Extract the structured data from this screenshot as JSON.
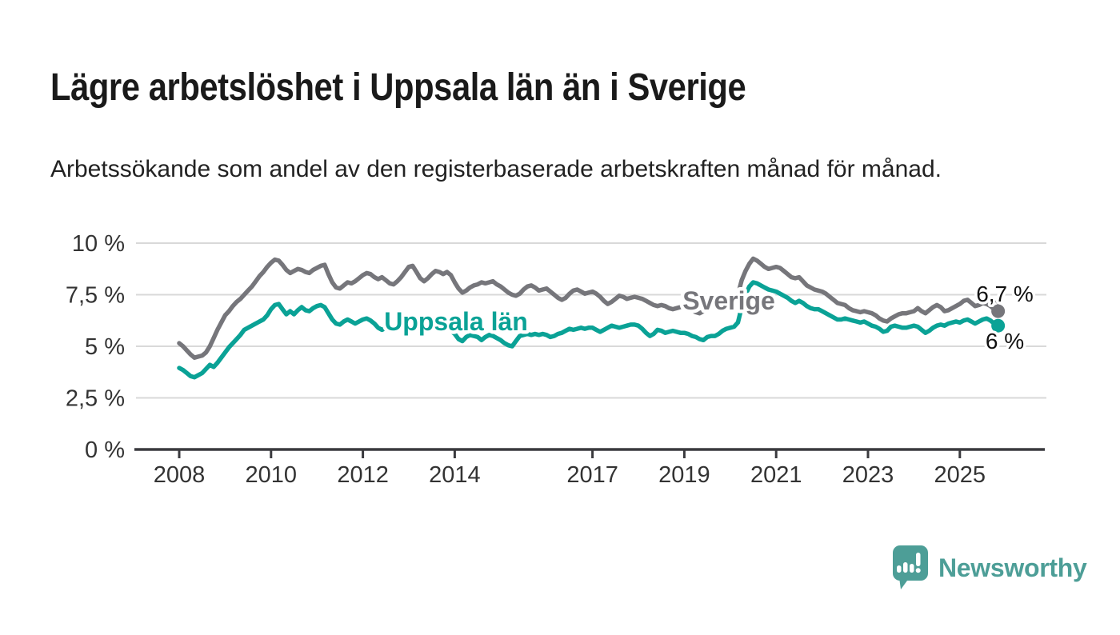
{
  "header": {
    "title": "Lägre arbetslöshet i Uppsala län än i Sverige",
    "subtitle": "Arbetssökande som andel av den registerbaserade arbetskraften månad för månad."
  },
  "branding": {
    "logo_text": "Newsworthy",
    "logo_color": "#4d9e97"
  },
  "chart_data": {
    "type": "line",
    "title": "Lägre arbetslöshet i Uppsala län än i Sverige",
    "subtitle": "Arbetssökande som andel av den registerbaserade arbetskraften månad för månad.",
    "x_unit": "month",
    "x_start_year": 2008,
    "x_end": "2025-11",
    "x_ticks": [
      2008,
      2010,
      2012,
      2014,
      2017,
      2019,
      2021,
      2023,
      2025
    ],
    "x_tick_labels": [
      "2008",
      "2010",
      "2012",
      "2014",
      "2017",
      "2019",
      "2021",
      "2023",
      "2025"
    ],
    "y_ticks": [
      {
        "value": 0,
        "label": "0 %"
      },
      {
        "value": 2.5,
        "label": "2,5 %"
      },
      {
        "value": 5,
        "label": "5 %"
      },
      {
        "value": 7.5,
        "label": "7,5 %"
      },
      {
        "value": 10,
        "label": "10 %"
      }
    ],
    "ylim": [
      0,
      10.5
    ],
    "grid": "horizontal",
    "legend_position": "inline-labels",
    "colors": {
      "grid": "#d9d9d9",
      "axis": "#3a3a3e",
      "tick_text": "#333333",
      "end_label_text": "#111111"
    },
    "series": [
      {
        "name": "Sverige",
        "color": "#76767b",
        "end_label": "6,7 %",
        "end_value": 6.7,
        "values": [
          5.15,
          5.0,
          4.8,
          4.6,
          4.45,
          4.5,
          4.55,
          4.7,
          5.0,
          5.4,
          5.8,
          6.15,
          6.5,
          6.7,
          6.95,
          7.15,
          7.3,
          7.5,
          7.7,
          7.9,
          8.15,
          8.4,
          8.6,
          8.85,
          9.05,
          9.2,
          9.15,
          8.95,
          8.7,
          8.55,
          8.65,
          8.75,
          8.7,
          8.6,
          8.55,
          8.7,
          8.8,
          8.9,
          8.95,
          8.5,
          8.1,
          7.85,
          7.8,
          7.95,
          8.1,
          8.05,
          8.15,
          8.3,
          8.45,
          8.55,
          8.5,
          8.35,
          8.25,
          8.35,
          8.2,
          8.05,
          8.0,
          8.15,
          8.35,
          8.6,
          8.85,
          8.9,
          8.6,
          8.3,
          8.15,
          8.3,
          8.5,
          8.65,
          8.6,
          8.5,
          8.6,
          8.45,
          8.1,
          7.8,
          7.6,
          7.7,
          7.85,
          7.95,
          8.0,
          8.1,
          8.05,
          8.1,
          8.15,
          8.0,
          7.9,
          7.75,
          7.6,
          7.5,
          7.45,
          7.55,
          7.75,
          7.9,
          7.95,
          7.85,
          7.7,
          7.75,
          7.8,
          7.65,
          7.5,
          7.35,
          7.25,
          7.35,
          7.55,
          7.7,
          7.75,
          7.65,
          7.55,
          7.6,
          7.65,
          7.55,
          7.4,
          7.2,
          7.05,
          7.15,
          7.3,
          7.45,
          7.4,
          7.3,
          7.35,
          7.4,
          7.35,
          7.3,
          7.2,
          7.1,
          7.0,
          6.95,
          7.0,
          6.95,
          6.85,
          6.8,
          6.85,
          6.9,
          6.95,
          6.85,
          6.75,
          6.65,
          6.6,
          6.7,
          6.85,
          6.95,
          6.9,
          6.85,
          6.9,
          7.0,
          7.1,
          7.15,
          7.5,
          8.2,
          8.65,
          9.0,
          9.25,
          9.15,
          9.0,
          8.85,
          8.75,
          8.8,
          8.85,
          8.8,
          8.65,
          8.5,
          8.35,
          8.3,
          8.35,
          8.15,
          7.95,
          7.85,
          7.75,
          7.7,
          7.65,
          7.55,
          7.4,
          7.25,
          7.1,
          7.05,
          7.0,
          6.85,
          6.75,
          6.7,
          6.65,
          6.7,
          6.65,
          6.6,
          6.5,
          6.35,
          6.25,
          6.2,
          6.35,
          6.45,
          6.55,
          6.6,
          6.6,
          6.65,
          6.7,
          6.85,
          6.7,
          6.6,
          6.75,
          6.9,
          7.0,
          6.9,
          6.7,
          6.75,
          6.85,
          6.95,
          7.05,
          7.2,
          7.25,
          7.1,
          6.95,
          7.0,
          7.1,
          7.05,
          6.95,
          6.8,
          6.7
        ]
      },
      {
        "name": "Uppsala län",
        "color": "#0aa296",
        "end_label": "6 %",
        "end_value": 6.0,
        "values": [
          3.95,
          3.85,
          3.7,
          3.55,
          3.5,
          3.6,
          3.7,
          3.9,
          4.1,
          4.0,
          4.2,
          4.45,
          4.7,
          4.95,
          5.15,
          5.35,
          5.55,
          5.8,
          5.9,
          6.0,
          6.1,
          6.2,
          6.3,
          6.5,
          6.8,
          7.0,
          7.05,
          6.8,
          6.55,
          6.7,
          6.55,
          6.75,
          6.9,
          6.75,
          6.7,
          6.85,
          6.95,
          7.0,
          6.9,
          6.6,
          6.3,
          6.1,
          6.05,
          6.2,
          6.3,
          6.2,
          6.1,
          6.2,
          6.3,
          6.35,
          6.25,
          6.1,
          5.9,
          5.8,
          5.9,
          6.0,
          5.95,
          6.05,
          6.1,
          6.2,
          6.25,
          6.3,
          6.2,
          6.05,
          5.95,
          6.05,
          6.15,
          6.2,
          6.1,
          6.0,
          5.9,
          5.75,
          5.6,
          5.35,
          5.25,
          5.45,
          5.55,
          5.5,
          5.45,
          5.3,
          5.45,
          5.55,
          5.5,
          5.4,
          5.3,
          5.15,
          5.05,
          5.0,
          5.25,
          5.5,
          5.55,
          5.6,
          5.55,
          5.6,
          5.55,
          5.6,
          5.55,
          5.45,
          5.5,
          5.6,
          5.65,
          5.75,
          5.85,
          5.8,
          5.85,
          5.9,
          5.85,
          5.9,
          5.9,
          5.8,
          5.7,
          5.8,
          5.9,
          6.0,
          5.95,
          5.9,
          5.95,
          6.0,
          6.05,
          6.05,
          6.0,
          5.85,
          5.65,
          5.5,
          5.6,
          5.8,
          5.75,
          5.65,
          5.7,
          5.75,
          5.7,
          5.65,
          5.65,
          5.6,
          5.5,
          5.45,
          5.35,
          5.3,
          5.45,
          5.5,
          5.5,
          5.6,
          5.75,
          5.85,
          5.9,
          5.95,
          6.15,
          6.9,
          7.5,
          7.9,
          8.1,
          8.05,
          7.95,
          7.85,
          7.75,
          7.7,
          7.65,
          7.55,
          7.45,
          7.35,
          7.2,
          7.1,
          7.2,
          7.1,
          6.95,
          6.85,
          6.8,
          6.8,
          6.7,
          6.6,
          6.5,
          6.4,
          6.3,
          6.3,
          6.35,
          6.3,
          6.25,
          6.2,
          6.15,
          6.2,
          6.1,
          6.0,
          5.95,
          5.85,
          5.7,
          5.75,
          5.95,
          6.0,
          5.95,
          5.9,
          5.9,
          5.95,
          6.0,
          5.95,
          5.8,
          5.65,
          5.75,
          5.9,
          6.0,
          6.05,
          6.0,
          6.1,
          6.15,
          6.2,
          6.15,
          6.25,
          6.3,
          6.2,
          6.1,
          6.2,
          6.3,
          6.35,
          6.25,
          6.1,
          6.0
        ]
      }
    ]
  }
}
